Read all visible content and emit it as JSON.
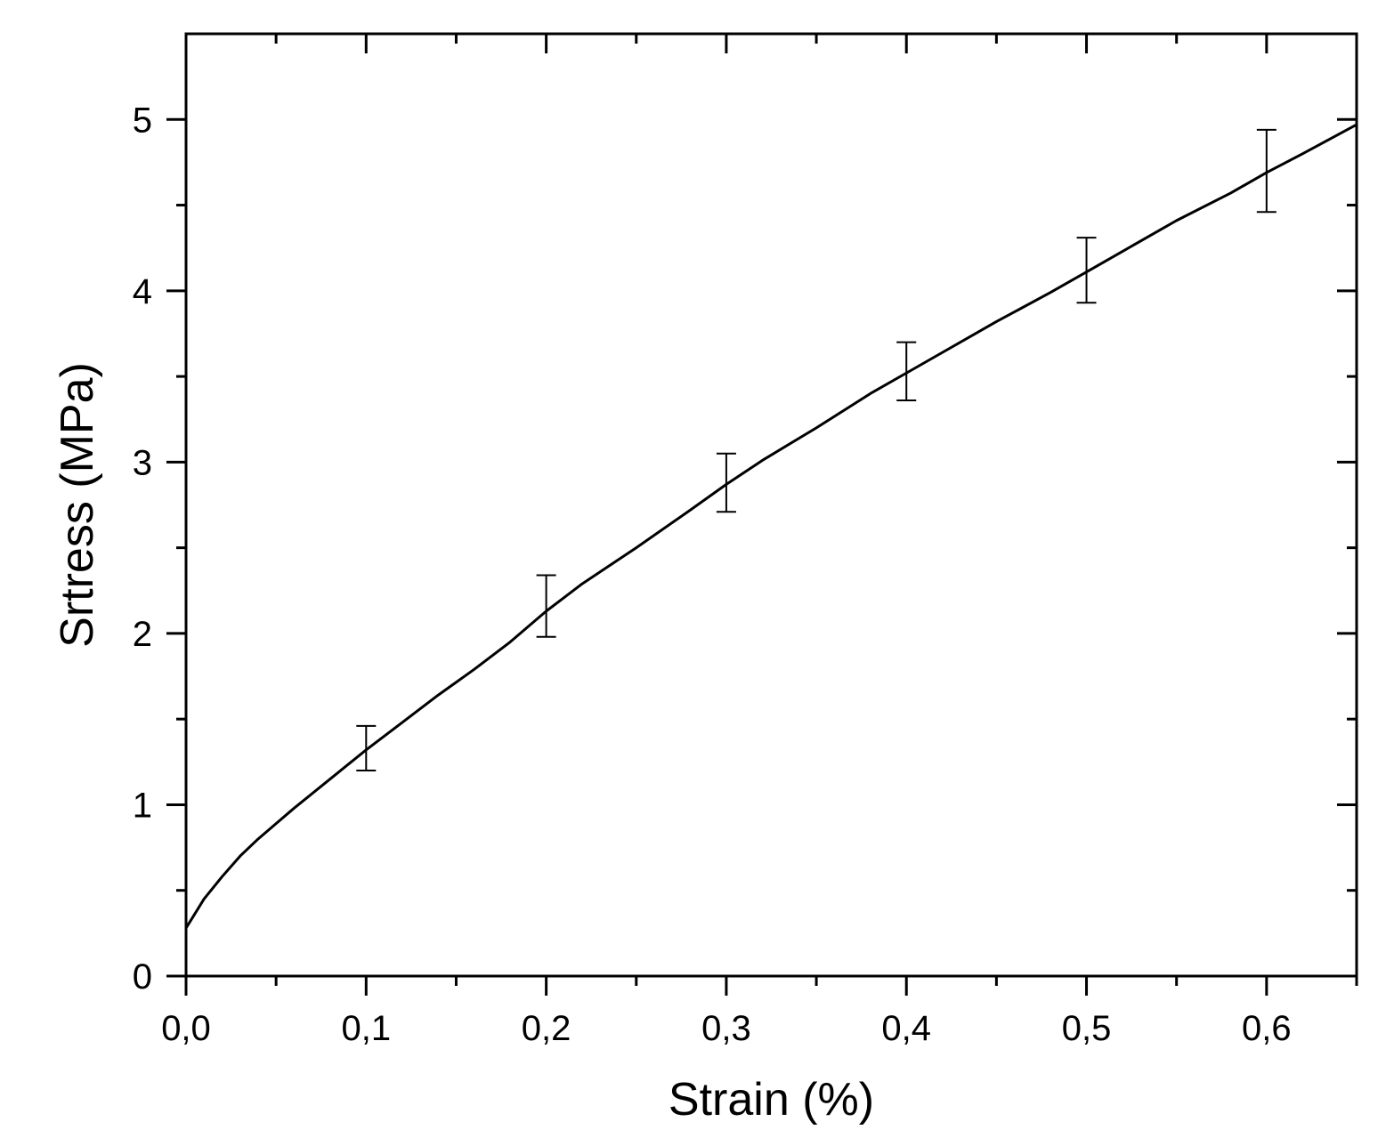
{
  "chart_data": {
    "type": "line",
    "title": "",
    "xlabel": "Strain (%)",
    "ylabel": "Srtress (MPa)",
    "xlim": [
      0,
      0.65
    ],
    "ylim": [
      0,
      5.5
    ],
    "x_ticks": [
      0,
      0.1,
      0.2,
      0.3,
      0.4,
      0.5,
      0.6
    ],
    "x_tick_labels": [
      "0,0",
      "0,1",
      "0,2",
      "0,3",
      "0,4",
      "0,5",
      "0,6"
    ],
    "y_ticks": [
      0,
      1,
      2,
      3,
      4,
      5
    ],
    "y_tick_labels": [
      "0",
      "1",
      "2",
      "3",
      "4",
      "5"
    ],
    "x_minor_ticks": [
      0.05,
      0.15,
      0.25,
      0.35,
      0.45,
      0.55,
      0.65
    ],
    "y_minor_ticks": [
      0.5,
      1.5,
      2.5,
      3.5,
      4.5
    ],
    "grid": false,
    "legend": "none",
    "series": [
      {
        "x": [
          0,
          0.01,
          0.02,
          0.03,
          0.04,
          0.05,
          0.06,
          0.08,
          0.1,
          0.12,
          0.14,
          0.16,
          0.18,
          0.2,
          0.22,
          0.25,
          0.28,
          0.3,
          0.32,
          0.35,
          0.38,
          0.4,
          0.42,
          0.45,
          0.48,
          0.5,
          0.52,
          0.55,
          0.58,
          0.6,
          0.62,
          0.65
        ],
        "y": [
          0.28,
          0.45,
          0.58,
          0.7,
          0.8,
          0.89,
          0.98,
          1.15,
          1.32,
          1.48,
          1.64,
          1.79,
          1.95,
          2.13,
          2.29,
          2.5,
          2.72,
          2.87,
          3.01,
          3.2,
          3.4,
          3.52,
          3.64,
          3.82,
          3.99,
          4.11,
          4.23,
          4.41,
          4.57,
          4.69,
          4.8,
          4.97
        ],
        "color": "#000000"
      }
    ],
    "error_bars": {
      "x": [
        0.1,
        0.2,
        0.3,
        0.4,
        0.5,
        0.6
      ],
      "y": [
        1.33,
        2.16,
        2.88,
        3.53,
        4.12,
        4.7
      ],
      "err": [
        0.13,
        0.18,
        0.17,
        0.17,
        0.19,
        0.24
      ]
    }
  }
}
